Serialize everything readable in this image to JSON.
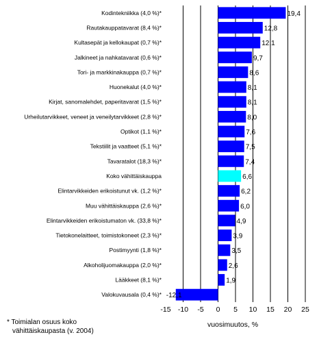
{
  "chart_data": {
    "type": "bar",
    "orientation": "horizontal",
    "categories": [
      "Kodintekniikka (4,0 %)*",
      "Rautakauppatavarat (8,4 %)*",
      "Kultasepät ja kellokaupat (0,7 %)*",
      "Jalkineet ja nahkatavarat (0,6 %)*",
      "Tori- ja markkinakauppa (0,7 %)*",
      "Huonekalut (4,0 %)*",
      "Kirjat, sanomalehdet, paperitavarat (1,5 %)*",
      "Urheilutarvikkeet, veneet ja veneilytarvikkeet (2,8 %)*",
      "Optikot (1,1 %)*",
      "Tekstiilit ja vaatteet (5,1 %)*",
      "Tavaratalot (18,3 %)*",
      "Koko vähittäiskauppa",
      "Elintarvikkeiden erikoistunut vk. (1,2 %)*",
      "Muu vähittäiskauppa (2,6 %)*",
      "Elintarvikkeiden erikoistumaton vk. (33,8 %)*",
      "Tietokonelaitteet, toimistokoneet (2,3 %)*",
      "Postimyynti (1,8 %)*",
      "Alkoholijuomakauppa (2,0 %)*",
      "Lääkkeet (8,1 %)*",
      "Valokuvausala (0,4 %)*"
    ],
    "values": [
      19.4,
      12.8,
      12.1,
      9.7,
      8.6,
      8.1,
      8.1,
      8.0,
      7.6,
      7.5,
      7.4,
      6.6,
      6.2,
      6.0,
      4.9,
      3.9,
      3.5,
      2.6,
      1.9,
      -12.1
    ],
    "value_labels": [
      "19,4",
      "12,8",
      "12,1",
      "9,7",
      "8,6",
      "8,1",
      "8,1",
      "8,0",
      "7,6",
      "7,5",
      "7,4",
      "6,6",
      "6,2",
      "6,0",
      "4,9",
      "3,9",
      "3,5",
      "2,6",
      "1,9",
      "-12,1"
    ],
    "highlight_index": 11,
    "xlim": [
      -15,
      25
    ],
    "xticks": [
      -15,
      -10,
      -5,
      0,
      5,
      10,
      15,
      20,
      25
    ],
    "xlabel": "vuosimuutos, %",
    "grid": "vertical",
    "colors": {
      "bar": "#0000ff",
      "highlight": "#00ffff",
      "grid": "#000000"
    }
  },
  "footnote": {
    "line1": "* Toimialan osuus koko",
    "line2": "vähittäiskaupasta (v. 2004)"
  }
}
